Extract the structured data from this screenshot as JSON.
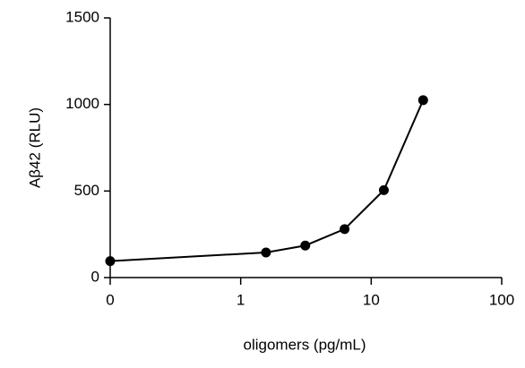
{
  "chart_data": {
    "type": "line",
    "y_label": "Aβ42 (RLU)",
    "x_label": "oligomers (pg/mL)",
    "x": [
      0,
      1.5625,
      3.125,
      6.25,
      12.5,
      25
    ],
    "series": [
      {
        "color": "#000000",
        "values": [
          95,
          145,
          185,
          280,
          505,
          1025
        ]
      }
    ],
    "xscale": "log",
    "xlim": [
      0,
      100
    ],
    "xticks": [
      0,
      1,
      10,
      100
    ],
    "ylim": [
      0,
      1500
    ],
    "yticks": [
      0,
      500,
      1000,
      1500
    ]
  }
}
